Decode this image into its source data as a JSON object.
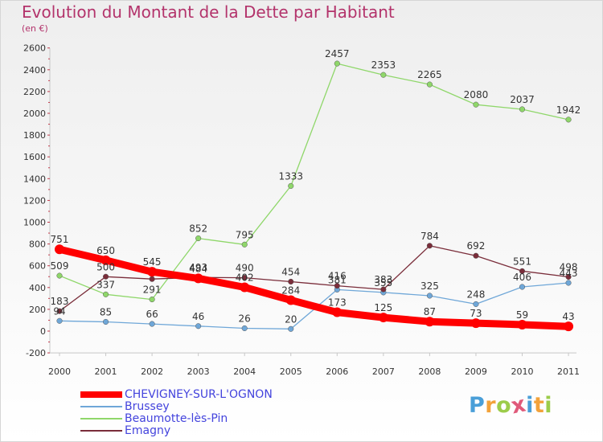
{
  "header": {
    "title": "Evolution du Montant de la Dette par Habitant",
    "unit": "(en €)"
  },
  "brand": {
    "letters": [
      "P",
      "r",
      "o",
      "x",
      "i",
      "t",
      "i"
    ],
    "colors": [
      "#4a9fd8",
      "#f2a23a",
      "#9ccc4a",
      "#e05a7a",
      "#4a9fd8",
      "#f2a23a",
      "#9ccc4a"
    ]
  },
  "chart_data": {
    "type": "line",
    "title": "Evolution du Montant de la Dette par Habitant",
    "ylabel": "(en €)",
    "xlabel": "",
    "ylim": [
      -200,
      2600
    ],
    "ytick_step": 200,
    "grid": false,
    "legend_position": "bottom-left",
    "x": [
      "2000",
      "2001",
      "2002",
      "2003",
      "2004",
      "2005",
      "2006",
      "2007",
      "2008",
      "2009",
      "2010",
      "2011"
    ],
    "series": [
      {
        "name": "CHEVIGNEY-SUR-L'OGNON",
        "color": "#ff0000",
        "emphasis": true,
        "values": [
          751,
          650,
          545,
          484,
          402,
          284,
          173,
          125,
          87,
          73,
          59,
          43
        ],
        "labels": [
          "751",
          "650",
          "545",
          "484",
          "402",
          "284",
          "173",
          "125",
          "87",
          "73",
          "59",
          "43"
        ]
      },
      {
        "name": "Brussey",
        "color": "#6fa7d8",
        "emphasis": false,
        "values": [
          94,
          85,
          66,
          46,
          26,
          20,
          381,
          355,
          325,
          248,
          406,
          443
        ],
        "labels": [
          "94",
          "85",
          "66",
          "46",
          "26",
          "20",
          "381",
          "355",
          "325",
          "248",
          "406",
          "443"
        ]
      },
      {
        "name": "Beaumotte-lès-Pin",
        "color": "#8fd76a",
        "emphasis": false,
        "values": [
          509,
          337,
          291,
          852,
          795,
          1333,
          2457,
          2353,
          2265,
          2080,
          2037,
          1942
        ],
        "labels": [
          "509",
          "337",
          "291",
          "852",
          "795",
          "1333",
          "2457",
          "2353",
          "2265",
          "2080",
          "2037",
          "1942"
        ]
      },
      {
        "name": "Emagny",
        "color": "#7a2d3a",
        "emphasis": false,
        "values": [
          183,
          500,
          478,
          493,
          490,
          454,
          416,
          383,
          784,
          692,
          551,
          498
        ],
        "labels": [
          "183",
          "500",
          "",
          "493",
          "490",
          "454",
          "416",
          "383",
          "784",
          "692",
          "551",
          "498"
        ]
      }
    ]
  },
  "legend_colors": {
    "text": "#4444dd"
  }
}
